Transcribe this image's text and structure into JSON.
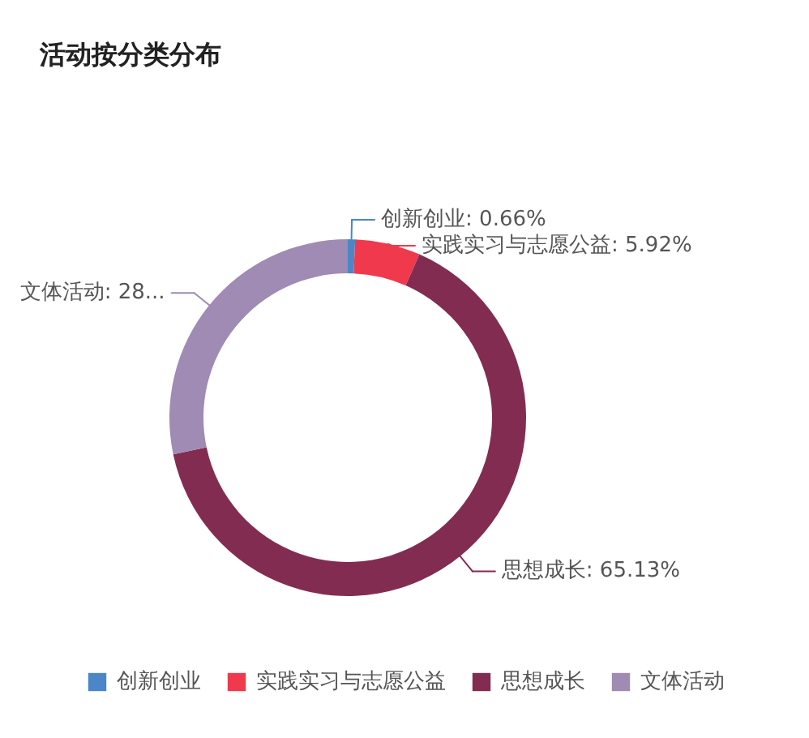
{
  "chart_data": {
    "type": "donut",
    "title": "活动按分类分布",
    "categories": [
      "创新创业",
      "实践实习与志愿公益",
      "思想成长",
      "文体活动"
    ],
    "values": [
      0.66,
      5.92,
      65.13,
      28.29
    ],
    "colors": [
      "#4a86c8",
      "#f0394c",
      "#832c52",
      "#9f8bb3"
    ],
    "value_labels": [
      "创新创业: 0.66%",
      "实践实习与志愿公益: 5.92%",
      "思想成长: 65.13%",
      "文体活动: 28..."
    ],
    "legend": "bottom"
  }
}
